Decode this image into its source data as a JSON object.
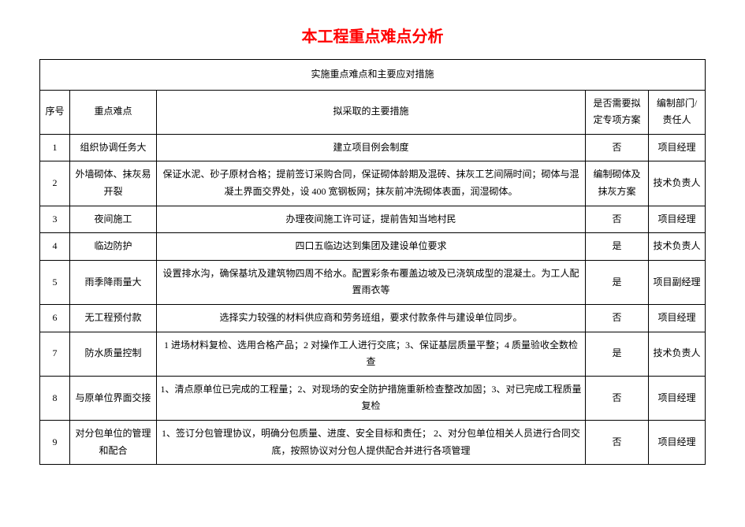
{
  "title": "本工程重点难点分析",
  "title_color": "#ff0000",
  "table_caption": "实施重点难点和主要应对措施",
  "headers": {
    "seq": "序号",
    "difficulty": "重点难点",
    "measures": "拟采取的主要措施",
    "need_plan": "是否需要拟定专项方案",
    "owner": "编制部门/责任人"
  },
  "rows": [
    {
      "seq": "1",
      "difficulty": "组织协调任务大",
      "measures": "建立项目例会制度",
      "need_plan": "否",
      "owner": "项目经理"
    },
    {
      "seq": "2",
      "difficulty": "外墙砌体、抹灰易开裂",
      "measures": "保证水泥、砂子原材合格；提前签订采购合同，保证砌体龄期及混砖、抹灰工艺间隔时间；砌体与混凝土界面交界处，设 400 宽钢板网；抹灰前冲洗砌体表面，润湿砌体。",
      "need_plan": "编制砌体及抹灰方案",
      "owner": "技术负责人"
    },
    {
      "seq": "3",
      "difficulty": "夜间施工",
      "measures": "办理夜间施工许可证，提前告知当地村民",
      "need_plan": "否",
      "owner": "项目经理"
    },
    {
      "seq": "4",
      "difficulty": "临边防护",
      "measures": "四口五临边达到集团及建设单位要求",
      "need_plan": "是",
      "owner": "技术负责人"
    },
    {
      "seq": "5",
      "difficulty": "雨季降雨量大",
      "measures": "设置排水沟，确保基坑及建筑物四周不给水。配置彩条布覆盖边坡及已浇筑成型的混凝土。为工人配置雨衣等",
      "need_plan": "是",
      "owner": "项目副经理"
    },
    {
      "seq": "6",
      "difficulty": "无工程预付款",
      "measures": "选择实力较强的材料供应商和劳务班组，要求付款条件与建设单位同步。",
      "need_plan": "否",
      "owner": "项目经理"
    },
    {
      "seq": "7",
      "difficulty": "防水质量控制",
      "measures": "1 进场材料复检、选用合格产品；2 对操作工人进行交底；3、保证基层质量平整；4 质量验收全数检查",
      "need_plan": "是",
      "owner": "技术负责人"
    },
    {
      "seq": "8",
      "difficulty": "与原单位界面交接",
      "measures": "1、清点原单位已完成的工程量；2、对现场的安全防护措施重新检查整改加固；3、对已完成工程质量复检",
      "need_plan": "否",
      "owner": "项目经理"
    },
    {
      "seq": "9",
      "difficulty": "对分包单位的管理和配合",
      "measures": "1、签订分包管理协议，明确分包质量、进度、安全目标和责任；\n2、对分包单位相关人员进行合同交底，按照协议对分包人提供配合并进行各项管理",
      "need_plan": "否",
      "owner": "项目经理"
    }
  ],
  "style": {
    "border_color": "#000000",
    "background": "#ffffff",
    "title_fontsize": 20,
    "body_fontsize": 12
  }
}
